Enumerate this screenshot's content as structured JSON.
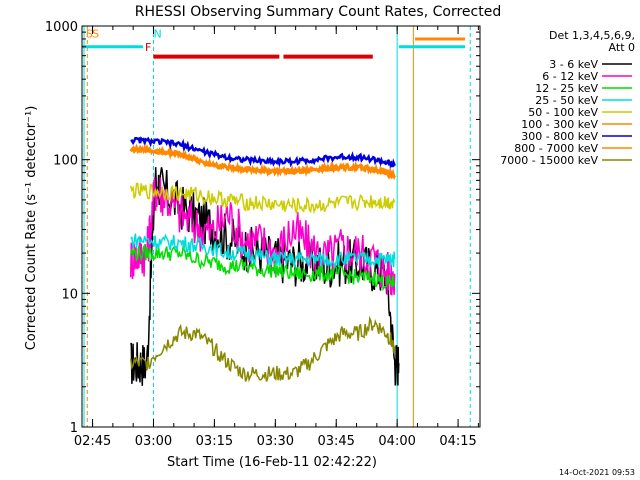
{
  "chart_data": {
    "type": "line",
    "title": "RHESSI Observing Summary Count Rates, Corrected",
    "xlabel": "Start Time (16-Feb-11 02:42:22)",
    "ylabel": "Corrected Count Rate (s⁻¹ detector⁻¹)",
    "yscale": "log",
    "ylim": [
      1,
      1000
    ],
    "xlim_minutes": [
      0,
      98
    ],
    "x_unit": "minutes after 02:42:22",
    "x_ticks": [
      {
        "label": "02:45",
        "minute": 2.6
      },
      {
        "label": "03:00",
        "minute": 17.6
      },
      {
        "label": "03:15",
        "minute": 32.6
      },
      {
        "label": "03:30",
        "minute": 47.6
      },
      {
        "label": "03:45",
        "minute": 62.6
      },
      {
        "label": "04:00",
        "minute": 77.6
      },
      {
        "label": "04:15",
        "minute": 92.6
      }
    ],
    "y_ticks": [
      {
        "label": "1",
        "value": 1
      },
      {
        "label": "10",
        "value": 10
      },
      {
        "label": "100",
        "value": 100
      },
      {
        "label": "1000",
        "value": 1000
      }
    ],
    "legend_header": [
      "Det 1,3,4,5,6,9,",
      "Att 0"
    ],
    "legend_position": "right",
    "series": [
      {
        "name": "3 - 6 keV",
        "color": "#000000",
        "x": [
          12,
          14,
          16,
          18,
          20,
          24,
          28,
          32,
          36,
          40,
          44,
          48,
          52,
          56,
          60,
          64,
          68,
          72,
          75,
          77,
          78
        ],
        "y": [
          3,
          3,
          3,
          70,
          60,
          45,
          38,
          32,
          26,
          22,
          20,
          18,
          17,
          17,
          16,
          17,
          17,
          15,
          14,
          3,
          3
        ]
      },
      {
        "name": "6 - 12 keV",
        "color": "#ff00cc",
        "x": [
          12,
          14,
          16,
          18,
          20,
          24,
          28,
          32,
          36,
          40,
          44,
          48,
          52,
          56,
          60,
          64,
          68,
          72,
          75,
          77
        ],
        "y": [
          18,
          20,
          20,
          60,
          55,
          40,
          32,
          28,
          40,
          25,
          24,
          20,
          30,
          22,
          18,
          22,
          20,
          18,
          14,
          14
        ]
      },
      {
        "name": "12 - 25 keV",
        "color": "#00dd00",
        "x": [
          12,
          16,
          20,
          24,
          28,
          32,
          36,
          40,
          44,
          48,
          52,
          56,
          60,
          64,
          68,
          72,
          75,
          77
        ],
        "y": [
          20,
          20,
          20,
          20,
          18,
          17,
          16,
          16,
          15,
          15,
          14,
          14,
          14,
          14,
          13,
          13,
          12,
          12
        ]
      },
      {
        "name": "25 - 50 keV",
        "color": "#00dddd",
        "x": [
          12,
          16,
          20,
          24,
          28,
          32,
          36,
          40,
          44,
          48,
          52,
          56,
          60,
          64,
          68,
          72,
          75,
          77
        ],
        "y": [
          25,
          25,
          24,
          24,
          23,
          22,
          20,
          20,
          19,
          18,
          18,
          18,
          18,
          18,
          18,
          18,
          18,
          18
        ]
      },
      {
        "name": "50 - 100 keV",
        "color": "#cccc00",
        "x": [
          12,
          16,
          20,
          24,
          28,
          32,
          36,
          40,
          44,
          48,
          52,
          56,
          60,
          64,
          68,
          72,
          75,
          77
        ],
        "y": [
          58,
          58,
          58,
          56,
          55,
          52,
          50,
          48,
          47,
          46,
          45,
          45,
          46,
          47,
          48,
          49,
          48,
          48
        ]
      },
      {
        "name": "100 - 300 keV",
        "color": "#ff8800",
        "x": [
          12,
          16,
          20,
          24,
          28,
          32,
          36,
          40,
          44,
          48,
          52,
          56,
          60,
          64,
          68,
          72,
          75,
          77
        ],
        "y": [
          120,
          118,
          115,
          110,
          100,
          92,
          88,
          85,
          83,
          82,
          82,
          84,
          86,
          88,
          88,
          84,
          80,
          76
        ]
      },
      {
        "name": "300 - 800 keV",
        "color": "#0000dd",
        "x": [
          12,
          16,
          20,
          24,
          28,
          32,
          36,
          40,
          44,
          48,
          52,
          56,
          60,
          64,
          68,
          72,
          75,
          77
        ],
        "y": [
          140,
          138,
          135,
          130,
          120,
          110,
          104,
          100,
          98,
          97,
          97,
          99,
          102,
          105,
          105,
          100,
          95,
          90
        ]
      },
      {
        "name": "800 - 7000 keV",
        "color": "#ff8800",
        "x": [
          12,
          16,
          20,
          24,
          28,
          32,
          36,
          40,
          44,
          48,
          52,
          56,
          60,
          64,
          68,
          72,
          75,
          77
        ],
        "y": [
          120,
          118,
          115,
          110,
          100,
          92,
          88,
          85,
          83,
          82,
          82,
          84,
          86,
          88,
          88,
          84,
          80,
          76
        ]
      },
      {
        "name": "7000 - 15000 keV",
        "color": "#888800",
        "x": [
          12,
          16,
          20,
          24,
          28,
          32,
          36,
          40,
          44,
          48,
          52,
          56,
          60,
          64,
          68,
          72,
          75,
          77
        ],
        "y": [
          3,
          3,
          4,
          5,
          5,
          4,
          3,
          2.5,
          2.5,
          2.5,
          2.5,
          3,
          4,
          5,
          5,
          6,
          5,
          4
        ]
      }
    ],
    "red_flag_segments": [
      [
        17.6,
        48.6
      ],
      [
        49.6,
        71.6
      ]
    ],
    "red_high_segment_minutes": [
      12,
      77.6
    ],
    "flags": [
      {
        "label": "S",
        "color": "#ff8800",
        "minute": 1
      },
      {
        "label": "S",
        "color": "#ff8800",
        "minute": 2.5
      },
      {
        "label": "N",
        "color": "#00dddd",
        "minute": 17.6
      },
      {
        "label": "F",
        "color": "#cc0000",
        "minute": 15.5
      }
    ]
  },
  "timestamp": "14-Oct-2021 09:53"
}
